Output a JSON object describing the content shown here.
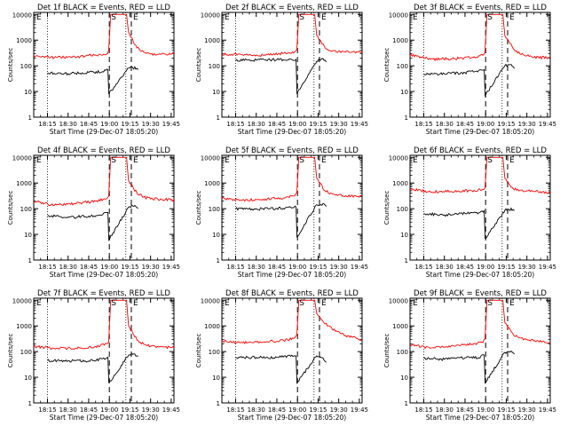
{
  "figure": {
    "start_time_label": "Start Time (29-Dec-07 18:05:20)",
    "ylabel": "Counts/sec",
    "legend_text": "BLACK = Events, RED = LLD",
    "x_ticks": [
      "18:15",
      "18:30",
      "18:45",
      "19:00",
      "19:15",
      "19:30",
      "19:45"
    ],
    "y_ticks": [
      "1",
      "10",
      "100",
      "1000",
      "10000"
    ],
    "marker_labels": {
      "start": "E",
      "saa": "S",
      "end": "E"
    },
    "colors": {
      "events": "#000000",
      "lld": "#ff0000",
      "axes": "#000000"
    }
  },
  "chart_data": [
    {
      "type": "line",
      "title": "Det 1f BLACK = Events, RED = LLD",
      "detector": "1f",
      "xlabel": "Start Time (29-Dec-07 18:05:20)",
      "ylabel": "Counts/sec",
      "xlim": [
        "18:05",
        "19:47"
      ],
      "ylim": [
        1,
        12000
      ],
      "yscale": "log",
      "vlines": {
        "dotted": [
          "18:15",
          "19:12"
        ],
        "dashed": [
          "19:00",
          "19:16"
        ]
      },
      "series": [
        {
          "name": "RED = LLD",
          "color": "#ff0000",
          "x": [
            "18:05",
            "18:20",
            "18:35",
            "18:50",
            "18:58",
            "18:59.5",
            "19:01",
            "19:07",
            "19:12.5",
            "19:14",
            "19:20",
            "19:25",
            "19:30",
            "19:35",
            "19:47"
          ],
          "y": [
            260,
            200,
            220,
            250,
            300,
            380,
            10000,
            10000,
            10000,
            2000,
            500,
            350,
            300,
            290,
            280
          ]
        },
        {
          "name": "BLACK = Events",
          "color": "#000000",
          "x": [
            "18:15",
            "18:30",
            "18:45",
            "18:55",
            "18:59",
            "18:59.6",
            "19:14",
            "19:17",
            "19:20",
            "19:21"
          ],
          "y": [
            55,
            52,
            55,
            60,
            68,
            8,
            80,
            80,
            75,
            70
          ]
        }
      ]
    },
    {
      "type": "line",
      "title": "Det 2f BLACK = Events, RED = LLD",
      "detector": "2f",
      "xlabel": "Start Time (29-Dec-07 18:05:20)",
      "ylabel": "Counts/sec",
      "xlim": [
        "18:05",
        "19:47"
      ],
      "ylim": [
        1,
        12000
      ],
      "yscale": "log",
      "vlines": {
        "dotted": [
          "18:15",
          "19:12"
        ],
        "dashed": [
          "19:00",
          "19:16"
        ]
      },
      "series": [
        {
          "name": "RED = LLD",
          "color": "#ff0000",
          "x": [
            "18:05",
            "18:20",
            "18:35",
            "18:50",
            "18:58",
            "18:59.5",
            "19:01",
            "19:07",
            "19:12.5",
            "19:14",
            "19:20",
            "19:25",
            "19:30",
            "19:35",
            "19:47"
          ],
          "y": [
            300,
            260,
            270,
            310,
            350,
            420,
            10000,
            10000,
            10000,
            1500,
            500,
            380,
            360,
            350,
            350
          ]
        },
        {
          "name": "BLACK = Events",
          "color": "#000000",
          "x": [
            "18:15",
            "18:30",
            "18:45",
            "18:55",
            "18:59",
            "18:59.6",
            "19:14",
            "19:17",
            "19:20",
            "19:21"
          ],
          "y": [
            170,
            160,
            165,
            170,
            180,
            8,
            160,
            170,
            160,
            150
          ]
        }
      ]
    },
    {
      "type": "line",
      "title": "Det 3f BLACK = Events, RED = LLD",
      "detector": "3f",
      "xlabel": "Start Time (29-Dec-07 18:05:20)",
      "ylabel": "Counts/sec",
      "xlim": [
        "18:05",
        "19:47"
      ],
      "ylim": [
        1,
        12000
      ],
      "yscale": "log",
      "vlines": {
        "dotted": [
          "18:15",
          "19:12"
        ],
        "dashed": [
          "19:00",
          "19:16"
        ]
      },
      "series": [
        {
          "name": "RED = LLD",
          "color": "#ff0000",
          "x": [
            "18:05",
            "18:20",
            "18:35",
            "18:50",
            "18:58",
            "18:59.5",
            "19:01",
            "19:07",
            "19:12.5",
            "19:14",
            "19:20",
            "19:25",
            "19:30",
            "19:35",
            "19:47"
          ],
          "y": [
            280,
            180,
            190,
            220,
            260,
            330,
            10000,
            10000,
            10000,
            1500,
            450,
            280,
            240,
            220,
            200
          ]
        },
        {
          "name": "BLACK = Events",
          "color": "#000000",
          "x": [
            "18:15",
            "18:30",
            "18:45",
            "18:55",
            "18:59",
            "18:59.6",
            "19:14",
            "19:17",
            "19:20",
            "19:21"
          ],
          "y": [
            50,
            48,
            55,
            65,
            75,
            7,
            100,
            110,
            90,
            80
          ]
        }
      ]
    },
    {
      "type": "line",
      "title": "Det 4f BLACK = Events, RED = LLD",
      "detector": "4f",
      "xlabel": "Start Time (29-Dec-07 18:05:20)",
      "ylabel": "Counts/sec",
      "xlim": [
        "18:05",
        "19:47"
      ],
      "ylim": [
        1,
        12000
      ],
      "yscale": "log",
      "vlines": {
        "dotted": [
          "18:15",
          "19:12"
        ],
        "dashed": [
          "19:00",
          "19:16"
        ]
      },
      "series": [
        {
          "name": "RED = LLD",
          "color": "#ff0000",
          "x": [
            "18:05",
            "18:20",
            "18:35",
            "18:50",
            "18:58",
            "18:59.5",
            "19:01",
            "19:07",
            "19:12.5",
            "19:14",
            "19:20",
            "19:25",
            "19:30",
            "19:35",
            "19:47"
          ],
          "y": [
            200,
            140,
            150,
            190,
            230,
            300,
            10000,
            10000,
            10000,
            1200,
            400,
            280,
            250,
            240,
            230
          ]
        },
        {
          "name": "BLACK = Events",
          "color": "#000000",
          "x": [
            "18:15",
            "18:30",
            "18:45",
            "18:55",
            "18:59",
            "18:59.6",
            "19:14",
            "19:17",
            "19:20",
            "19:21"
          ],
          "y": [
            55,
            45,
            50,
            60,
            70,
            6,
            120,
            130,
            110,
            100
          ]
        }
      ]
    },
    {
      "type": "line",
      "title": "Det 5f BLACK = Events, RED = LLD",
      "detector": "5f",
      "xlabel": "Start Time (29-Dec-07 18:05:20)",
      "ylabel": "Counts/sec",
      "xlim": [
        "18:05",
        "19:47"
      ],
      "ylim": [
        1,
        12000
      ],
      "yscale": "log",
      "vlines": {
        "dotted": [
          "18:15",
          "19:12"
        ],
        "dashed": [
          "19:00",
          "19:16"
        ]
      },
      "series": [
        {
          "name": "RED = LLD",
          "color": "#ff0000",
          "x": [
            "18:05",
            "18:20",
            "18:35",
            "18:50",
            "18:58",
            "18:59.5",
            "19:01",
            "19:07",
            "19:12.5",
            "19:14",
            "19:20",
            "19:25",
            "19:30",
            "19:35",
            "19:47"
          ],
          "y": [
            250,
            230,
            240,
            270,
            310,
            380,
            10000,
            10000,
            10000,
            1500,
            500,
            380,
            350,
            320,
            300
          ]
        },
        {
          "name": "BLACK = Events",
          "color": "#000000",
          "x": [
            "18:15",
            "18:30",
            "18:45",
            "18:55",
            "18:59",
            "18:59.6",
            "19:14",
            "19:17",
            "19:20",
            "19:21"
          ],
          "y": [
            100,
            100,
            105,
            110,
            120,
            8,
            140,
            150,
            140,
            130
          ]
        }
      ]
    },
    {
      "type": "line",
      "title": "Det 6f BLACK = Events, RED = LLD",
      "detector": "6f",
      "xlabel": "Start Time (29-Dec-07 18:05:20)",
      "ylabel": "Counts/sec",
      "xlim": [
        "18:05",
        "19:47"
      ],
      "ylim": [
        1,
        12000
      ],
      "yscale": "log",
      "vlines": {
        "dotted": [
          "18:15",
          "19:12"
        ],
        "dashed": [
          "19:00",
          "19:16"
        ]
      },
      "series": [
        {
          "name": "RED = LLD",
          "color": "#ff0000",
          "x": [
            "18:05",
            "18:20",
            "18:35",
            "18:50",
            "18:58",
            "18:59.5",
            "19:01",
            "19:07",
            "19:12.5",
            "19:14",
            "19:20",
            "19:25",
            "19:30",
            "19:35",
            "19:47"
          ],
          "y": [
            580,
            450,
            450,
            500,
            560,
            650,
            10000,
            10000,
            10000,
            1500,
            600,
            520,
            480,
            450,
            420
          ]
        },
        {
          "name": "BLACK = Events",
          "color": "#000000",
          "x": [
            "18:15",
            "18:30",
            "18:45",
            "18:55",
            "18:59",
            "18:59.6",
            "19:14",
            "19:17",
            "19:20",
            "19:21"
          ],
          "y": [
            65,
            60,
            65,
            70,
            80,
            7,
            90,
            100,
            95,
            85
          ]
        }
      ]
    },
    {
      "type": "line",
      "title": "Det 7f BLACK = Events, RED = LLD",
      "detector": "7f",
      "xlabel": "Start Time (29-Dec-07 18:05:20)",
      "ylabel": "Counts/sec",
      "xlim": [
        "18:05",
        "19:47"
      ],
      "ylim": [
        1,
        12000
      ],
      "yscale": "log",
      "vlines": {
        "dotted": [
          "18:15",
          "19:12"
        ],
        "dashed": [
          "19:00",
          "19:16"
        ]
      },
      "series": [
        {
          "name": "RED = LLD",
          "color": "#ff0000",
          "x": [
            "18:05",
            "18:20",
            "18:35",
            "18:50",
            "18:58",
            "18:59.5",
            "19:01",
            "19:07",
            "19:12.5",
            "19:14",
            "19:20",
            "19:25",
            "19:30",
            "19:35",
            "19:47"
          ],
          "y": [
            160,
            130,
            140,
            160,
            190,
            250,
            10000,
            10000,
            10000,
            1000,
            300,
            200,
            170,
            160,
            150
          ]
        },
        {
          "name": "BLACK = Events",
          "color": "#000000",
          "x": [
            "18:15",
            "18:30",
            "18:45",
            "18:55",
            "18:59",
            "18:59.6",
            "19:14",
            "19:17",
            "19:20",
            "19:21"
          ],
          "y": [
            45,
            42,
            45,
            50,
            60,
            6,
            70,
            75,
            70,
            65
          ]
        }
      ]
    },
    {
      "type": "line",
      "title": "Det 8f BLACK = Events, RED = LLD",
      "detector": "8f",
      "xlabel": "Start Time (29-Dec-07 18:05:20)",
      "ylabel": "Counts/sec",
      "xlim": [
        "18:05",
        "19:47"
      ],
      "ylim": [
        1,
        12000
      ],
      "yscale": "log",
      "vlines": {
        "dotted": [
          "18:15",
          "19:12"
        ],
        "dashed": [
          "19:00",
          "19:16"
        ]
      },
      "series": [
        {
          "name": "RED = LLD",
          "color": "#ff0000",
          "x": [
            "18:05",
            "18:20",
            "18:35",
            "18:50",
            "18:58",
            "18:59.5",
            "19:01",
            "19:07",
            "19:12.5",
            "19:14",
            "19:20",
            "19:25",
            "19:30",
            "19:35",
            "19:47"
          ],
          "y": [
            260,
            220,
            230,
            280,
            340,
            420,
            10000,
            10000,
            10000,
            3000,
            1200,
            800,
            600,
            450,
            300
          ]
        },
        {
          "name": "BLACK = Events",
          "color": "#000000",
          "x": [
            "18:15",
            "18:30",
            "18:45",
            "18:55",
            "18:59",
            "18:59.6",
            "19:14",
            "19:17",
            "19:20",
            "19:21"
          ],
          "y": [
            60,
            58,
            60,
            65,
            70,
            6,
            70,
            60,
            45,
            40
          ]
        }
      ]
    },
    {
      "type": "line",
      "title": "Det 9f BLACK = Events, RED = LLD",
      "detector": "9f",
      "xlabel": "Start Time (29-Dec-07 18:05:20)",
      "ylabel": "Counts/sec",
      "xlim": [
        "18:05",
        "19:47"
      ],
      "ylim": [
        1,
        12000
      ],
      "yscale": "log",
      "vlines": {
        "dotted": [
          "18:15",
          "19:12"
        ],
        "dashed": [
          "19:00",
          "19:16"
        ]
      },
      "series": [
        {
          "name": "RED = LLD",
          "color": "#ff0000",
          "x": [
            "18:05",
            "18:20",
            "18:35",
            "18:50",
            "18:58",
            "18:59.5",
            "19:01",
            "19:07",
            "19:12.5",
            "19:14",
            "19:20",
            "19:25",
            "19:30",
            "19:35",
            "19:47"
          ],
          "y": [
            190,
            140,
            160,
            190,
            230,
            320,
            10000,
            10000,
            10000,
            1300,
            450,
            320,
            280,
            260,
            250
          ]
        },
        {
          "name": "BLACK = Events",
          "color": "#000000",
          "x": [
            "18:15",
            "18:30",
            "18:45",
            "18:55",
            "18:59",
            "18:59.6",
            "19:14",
            "19:17",
            "19:20",
            "19:21"
          ],
          "y": [
            55,
            50,
            55,
            60,
            70,
            6,
            90,
            100,
            85,
            80
          ]
        }
      ]
    }
  ]
}
